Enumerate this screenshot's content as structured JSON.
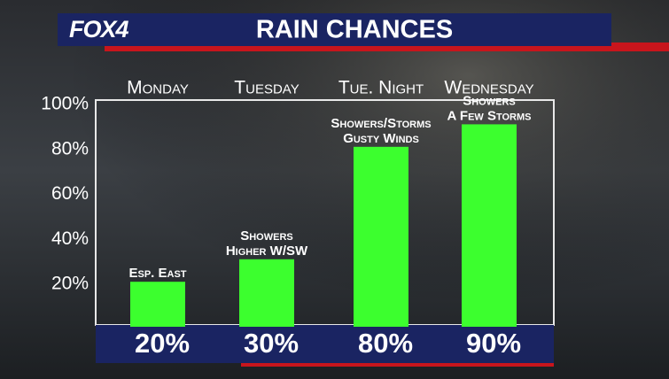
{
  "brand": "FOX4",
  "chart_data": {
    "type": "bar",
    "title": "RAIN CHANCES",
    "categories": [
      "Monday",
      "Tuesday",
      "Tue. Night",
      "Wednesday"
    ],
    "values": [
      20,
      30,
      80,
      90
    ],
    "value_labels": [
      "20%",
      "30%",
      "80%",
      "90%"
    ],
    "annotations": [
      [
        "Esp. East"
      ],
      [
        "Showers",
        "Higher W/SW"
      ],
      [
        "Showers/Storms",
        "Gusty Winds"
      ],
      [
        "Showers",
        "A Few Storms"
      ]
    ],
    "color": "#3cff2e",
    "ylim": [
      0,
      100
    ],
    "yticks": [
      {
        "value": 20,
        "label": "20%"
      },
      {
        "value": 40,
        "label": "40%"
      },
      {
        "value": 60,
        "label": "60%"
      },
      {
        "value": 80,
        "label": "80%"
      },
      {
        "value": 100,
        "label": "100%"
      }
    ]
  }
}
